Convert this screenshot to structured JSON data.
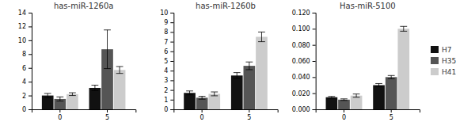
{
  "chart_data": [
    {
      "type": "bar",
      "title": "has-miR-1260a",
      "categories": [
        "0",
        "5"
      ],
      "series": [
        {
          "name": "H7",
          "color": "#111111",
          "values": [
            2.0,
            3.1
          ],
          "errors": [
            0.3,
            0.4
          ]
        },
        {
          "name": "H35",
          "color": "#555555",
          "values": [
            1.5,
            8.7
          ],
          "errors": [
            0.3,
            2.8
          ]
        },
        {
          "name": "H41",
          "color": "#cccccc",
          "values": [
            2.2,
            5.7
          ],
          "errors": [
            0.2,
            0.5
          ]
        }
      ],
      "ylim": [
        0,
        14
      ],
      "yticks": [
        0,
        2,
        4,
        6,
        8,
        10,
        12,
        14
      ]
    },
    {
      "type": "bar",
      "title": "has-miR-1260b",
      "categories": [
        "0",
        "5"
      ],
      "series": [
        {
          "name": "H7",
          "color": "#111111",
          "values": [
            1.7,
            3.5
          ],
          "errors": [
            0.2,
            0.3
          ]
        },
        {
          "name": "H35",
          "color": "#555555",
          "values": [
            1.2,
            4.5
          ],
          "errors": [
            0.15,
            0.4
          ]
        },
        {
          "name": "H41",
          "color": "#cccccc",
          "values": [
            1.6,
            7.5
          ],
          "errors": [
            0.2,
            0.5
          ]
        }
      ],
      "ylim": [
        0,
        10
      ],
      "yticks": [
        0,
        1,
        2,
        3,
        4,
        5,
        6,
        7,
        8,
        9,
        10
      ]
    },
    {
      "type": "bar",
      "title": "Has-miR-5100",
      "categories": [
        "0",
        "5"
      ],
      "series": [
        {
          "name": "H7",
          "color": "#111111",
          "values": [
            0.015,
            0.03
          ],
          "errors": [
            0.001,
            0.002
          ]
        },
        {
          "name": "H35",
          "color": "#555555",
          "values": [
            0.012,
            0.04
          ],
          "errors": [
            0.001,
            0.002
          ]
        },
        {
          "name": "H41",
          "color": "#cccccc",
          "values": [
            0.017,
            0.1
          ],
          "errors": [
            0.002,
            0.003
          ]
        }
      ],
      "ylim": [
        0,
        0.12
      ],
      "yticks": [
        {
          "value": 0.0,
          "label": "0.000"
        },
        {
          "value": 0.02,
          "label": "0.020"
        },
        {
          "value": 0.04,
          "label": "0.040"
        },
        {
          "value": 0.06,
          "label": "0.060"
        },
        {
          "value": 0.08,
          "label": "0.080"
        },
        {
          "value": 0.1,
          "label": "0.100"
        },
        {
          "value": 0.12,
          "label": "0.120"
        }
      ],
      "legend": "right"
    }
  ]
}
